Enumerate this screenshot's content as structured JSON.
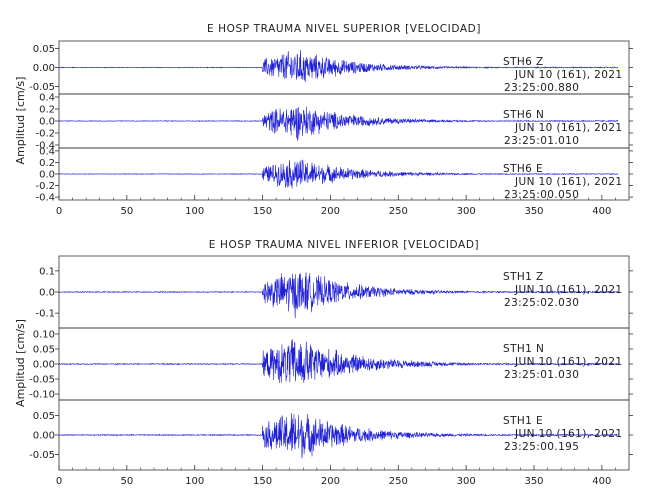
{
  "chart_data": [
    {
      "type": "line",
      "title": "E HOSP TRAUMA NIVEL SUPERIOR [VELOCIDAD]",
      "ylabel": "Amplitud [cm/s]",
      "xlim": [
        0,
        420
      ],
      "x_ticks": [
        "0",
        "50",
        "100",
        "150",
        "200",
        "250",
        "300",
        "350",
        "400"
      ],
      "grid": false,
      "line_color": "#1f1fd8",
      "panels": [
        {
          "station": "STH6   Z",
          "date": "JUN 10 (161), 2021",
          "time": "23:25:00.880",
          "ylim": [
            -0.07,
            0.07
          ],
          "y_ticks": [
            "0.05",
            "0.00",
            "-0.05"
          ],
          "envelope": {
            "onset_s": 150,
            "peak_s": 175,
            "end_s": 300,
            "peak_amplitude": 0.055
          }
        },
        {
          "station": "STH6   N",
          "date": "JUN 10 (161), 2021",
          "time": "23:25:01.010",
          "ylim": [
            -0.45,
            0.45
          ],
          "y_ticks": [
            "0.4",
            "0.2",
            "0.0",
            "-0.2",
            "-0.4"
          ],
          "envelope": {
            "onset_s": 150,
            "peak_s": 175,
            "end_s": 300,
            "peak_amplitude": 0.35
          }
        },
        {
          "station": "STH6   E",
          "date": "JUN 10 (161), 2021",
          "time": "23:25:00.050",
          "ylim": [
            -0.45,
            0.45
          ],
          "y_ticks": [
            "0.4",
            "0.2",
            "0.0",
            "-0.2",
            "-0.4"
          ],
          "envelope": {
            "onset_s": 150,
            "peak_s": 175,
            "end_s": 300,
            "peak_amplitude": 0.32
          }
        }
      ]
    },
    {
      "type": "line",
      "title": "E HOSP TRAUMA NIVEL INFERIOR [VELOCIDAD]",
      "ylabel": "Amplitud [cm/s]",
      "xlim": [
        0,
        420
      ],
      "x_ticks": [
        "0",
        "50",
        "100",
        "150",
        "200",
        "250",
        "300",
        "350",
        "400"
      ],
      "grid": false,
      "line_color": "#1f1fd8",
      "panels": [
        {
          "station": "STH1   Z",
          "date": "JUN 10 (161), 2021",
          "time": "23:25:02.030",
          "ylim": [
            -0.17,
            0.17
          ],
          "y_ticks": [
            "0.1",
            "0.0",
            "-0.1"
          ],
          "envelope": {
            "onset_s": 150,
            "peak_s": 175,
            "end_s": 300,
            "peak_amplitude": 0.13
          }
        },
        {
          "station": "STH1   N",
          "date": "JUN 10 (161), 2021",
          "time": "23:25:01.030",
          "ylim": [
            -0.12,
            0.12
          ],
          "y_ticks": [
            "0.10",
            "0.05",
            "0.00",
            "-0.05",
            "-0.10"
          ],
          "envelope": {
            "onset_s": 150,
            "peak_s": 175,
            "end_s": 310,
            "peak_amplitude": 0.1
          }
        },
        {
          "station": "STH1   E",
          "date": "JUN 10 (161), 2021",
          "time": "23:25:00.195",
          "ylim": [
            -0.09,
            0.09
          ],
          "y_ticks": [
            "0.05",
            "0.00",
            "-0.05"
          ],
          "envelope": {
            "onset_s": 150,
            "peak_s": 175,
            "end_s": 300,
            "peak_amplitude": 0.075
          }
        }
      ]
    }
  ]
}
